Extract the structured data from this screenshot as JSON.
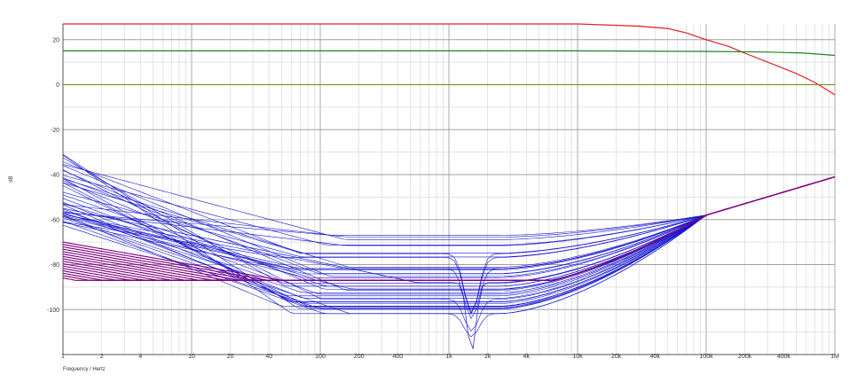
{
  "chart_data": {
    "type": "line",
    "xlabel": "Frequency / Hertz",
    "ylabel": "dB",
    "xscale": "log",
    "xlim": [
      1,
      1000000
    ],
    "ylim": [
      -120,
      27
    ],
    "grid": true,
    "x_tick_labels": [
      "1",
      "2",
      "4",
      "10",
      "20",
      "40",
      "100",
      "200",
      "400",
      "1k",
      "2k",
      "4k",
      "10k",
      "20k",
      "40k",
      "100k",
      "200k",
      "400k",
      "1M"
    ],
    "x_tick_values": [
      1,
      2,
      4,
      10,
      20,
      40,
      100,
      200,
      400,
      1000,
      2000,
      4000,
      10000,
      20000,
      40000,
      100000,
      200000,
      400000,
      1000000
    ],
    "y_tick_labels": [
      "20",
      "0",
      "-20",
      "-40",
      "-60",
      "-80",
      "-100"
    ],
    "y_tick_values": [
      20,
      0,
      -20,
      -40,
      -60,
      -80,
      -100
    ],
    "colors": {
      "red": "#e02020",
      "green": "#208020",
      "olive": "#7a9a20",
      "blue": "#1515d0",
      "purple": "#800080",
      "grid_major": "#a0a0a0",
      "grid_minor": "#d8d8d8"
    },
    "series": [
      {
        "color_key": "red",
        "x": [
          1,
          10,
          100,
          1000,
          10000,
          30000,
          50000,
          70000,
          100000,
          150000,
          200000,
          300000,
          500000,
          700000,
          1000000
        ],
        "y": [
          27,
          27,
          27,
          27,
          27,
          26,
          25,
          23,
          20,
          17,
          14,
          10,
          5,
          1,
          -4.5
        ]
      },
      {
        "color_key": "green",
        "x": [
          1,
          10000,
          100000,
          300000,
          600000,
          1000000
        ],
        "y": [
          15,
          15,
          14.8,
          14.5,
          14,
          13
        ]
      },
      {
        "color_key": "olive",
        "x": [
          1,
          1000000
        ],
        "y": [
          0,
          0
        ]
      }
    ],
    "families": [
      {
        "name": "blue-curves",
        "color_key": "blue",
        "count": 40,
        "low_freq_db_range": [
          -31,
          -63
        ],
        "floor_db_range": [
          -67,
          -102
        ],
        "corner_hz_range": [
          45,
          180
        ],
        "notch": {
          "x": 1500,
          "y": -119
        },
        "converge": {
          "x": 100000,
          "y": -58
        },
        "end": {
          "x": 1000000,
          "y": -41
        }
      },
      {
        "name": "purple-curves",
        "color_key": "purple",
        "count": 16,
        "low_freq_db_range": [
          -70,
          -86
        ],
        "floor_db": -87,
        "join_hz": 6000,
        "converge": {
          "x": 100000,
          "y": -58
        },
        "end": {
          "x": 1000000,
          "y": -41
        }
      }
    ]
  }
}
